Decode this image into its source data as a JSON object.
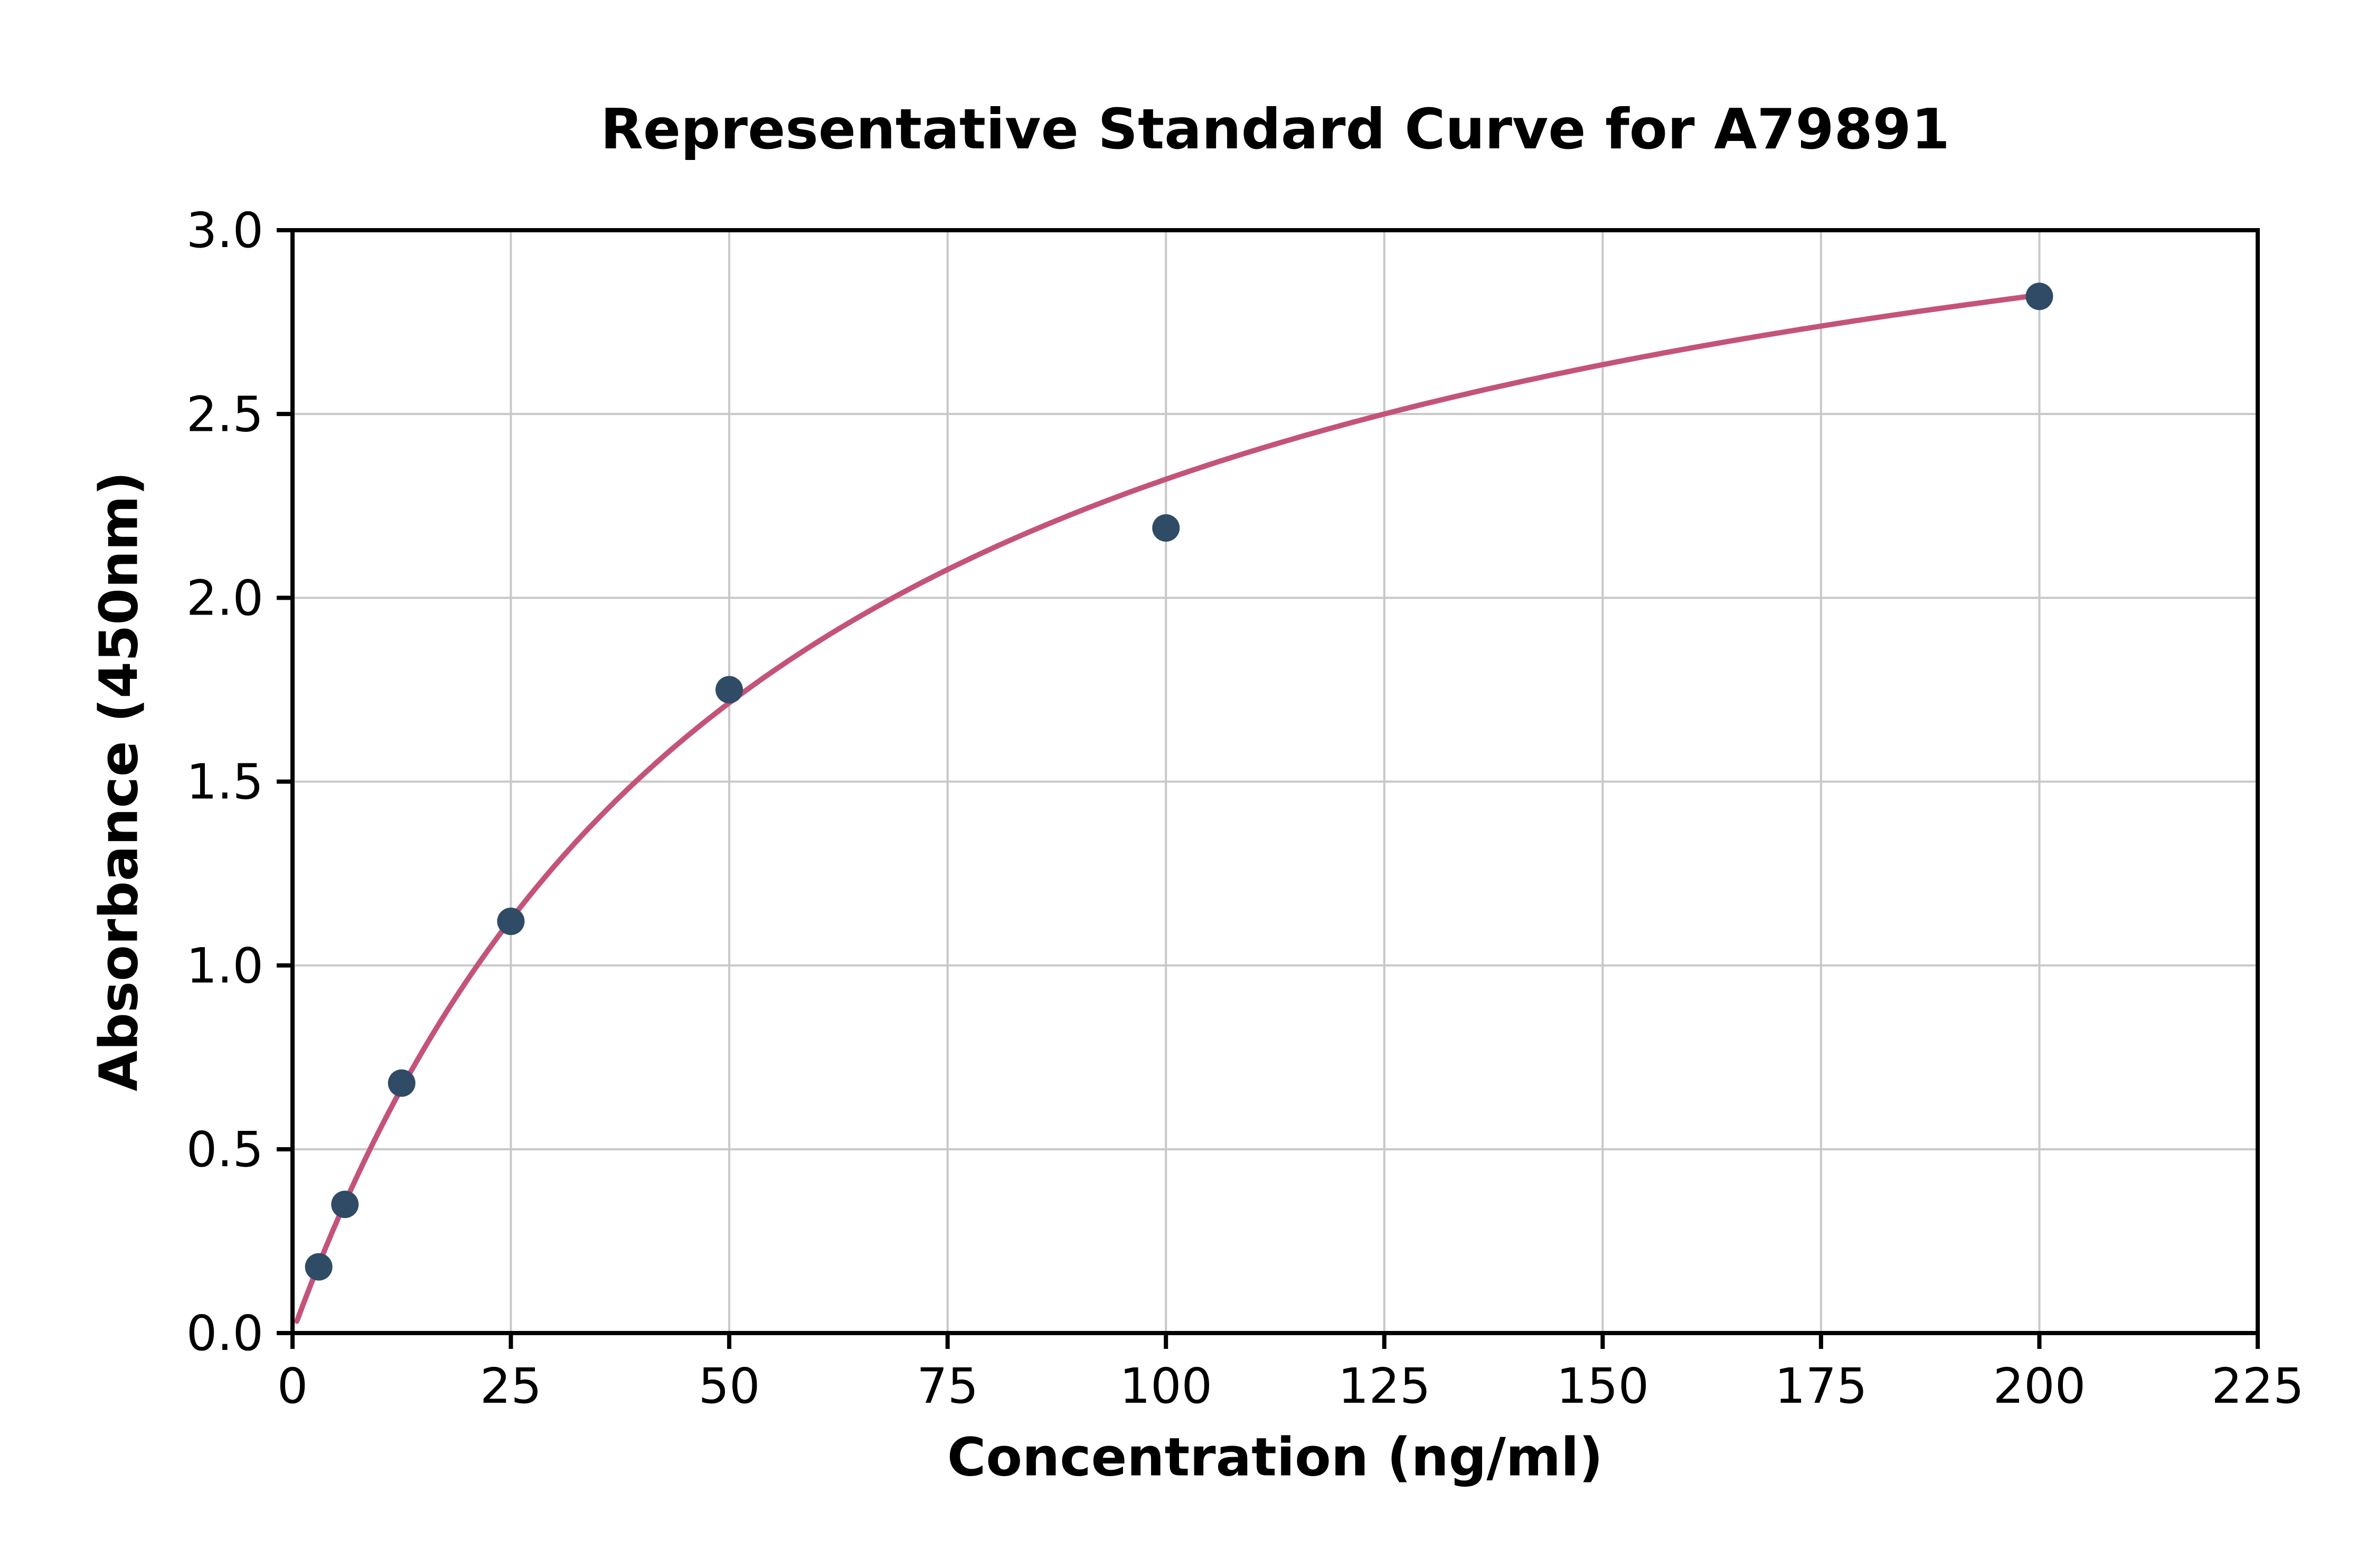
{
  "chart_data": {
    "type": "scatter",
    "title": "Representative Standard Curve for A79891",
    "xlabel": "Concentration (ng/ml)",
    "ylabel": "Absorbance (450nm)",
    "xlim": [
      0,
      225
    ],
    "ylim": [
      0.0,
      3.0
    ],
    "x_ticks": [
      0,
      25,
      50,
      75,
      100,
      125,
      150,
      175,
      200,
      225
    ],
    "x_tick_labels": [
      "0",
      "25",
      "50",
      "75",
      "100",
      "125",
      "150",
      "175",
      "200",
      "225"
    ],
    "y_ticks": [
      0.0,
      0.5,
      1.0,
      1.5,
      2.0,
      2.5,
      3.0
    ],
    "y_tick_labels": [
      "0.0",
      "0.5",
      "1.0",
      "1.5",
      "2.0",
      "2.5",
      "3.0"
    ],
    "grid": true,
    "legend": "none",
    "points": [
      {
        "x": 3,
        "y": 0.18
      },
      {
        "x": 6,
        "y": 0.35
      },
      {
        "x": 12.5,
        "y": 0.68
      },
      {
        "x": 25,
        "y": 1.12
      },
      {
        "x": 50,
        "y": 1.75
      },
      {
        "x": 100,
        "y": 2.19
      },
      {
        "x": 200,
        "y": 2.82
      }
    ],
    "fit_curve": {
      "model": "michaelis_menten",
      "vmax": 3.6,
      "km": 55,
      "x_start": 0.5,
      "x_end": 200
    },
    "colors": {
      "curve": "#c4537b",
      "point": "#2f4b66",
      "grid": "#c8c8c8",
      "axis": "#000000",
      "background": "#ffffff"
    }
  }
}
